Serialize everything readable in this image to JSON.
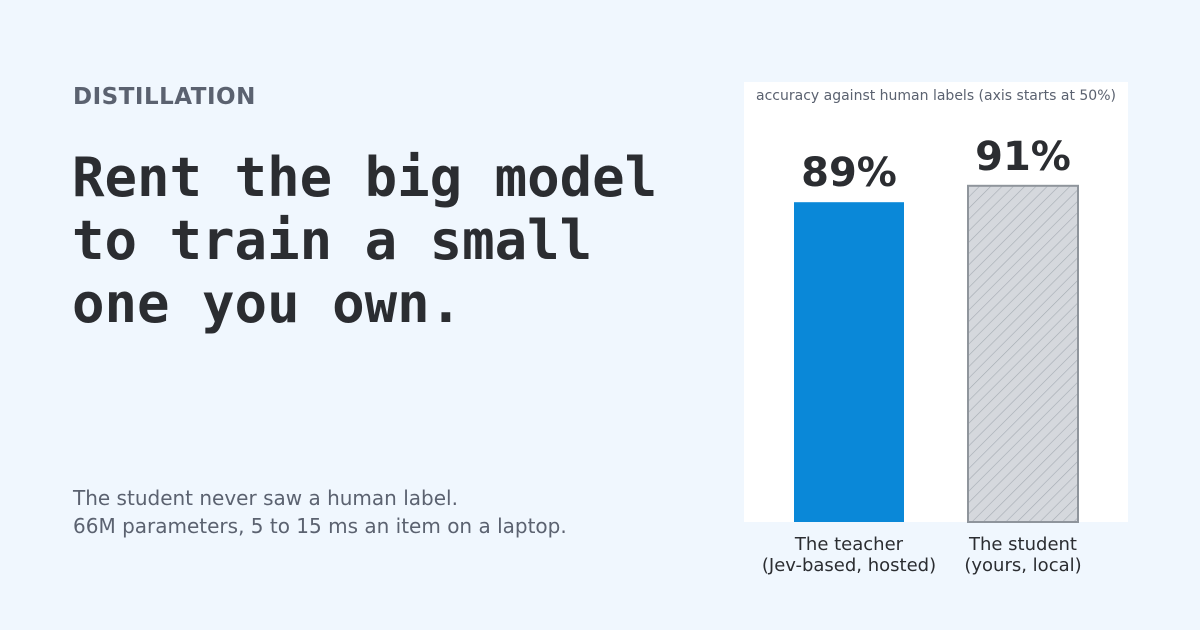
{
  "eyebrow": "DISTILLATION",
  "headline": [
    "Rent the big model",
    "to train a small",
    "one you own."
  ],
  "body": [
    "The student never saw a human label.",
    "66M parameters, 5 to 15 ms an item on a laptop."
  ],
  "chart_data": {
    "type": "bar",
    "subtitle": "accuracy against human labels (axis starts at 50%)",
    "categories": [
      "The teacher\n(Jev-based, hosted)",
      "The student\n(yours, local)"
    ],
    "values": [
      89,
      91
    ],
    "value_labels": [
      "89%",
      "91%"
    ],
    "colors": [
      "#0a88d8",
      "#d5d8dd"
    ],
    "hatched": [
      false,
      true
    ],
    "ylim": [
      50,
      100
    ]
  }
}
